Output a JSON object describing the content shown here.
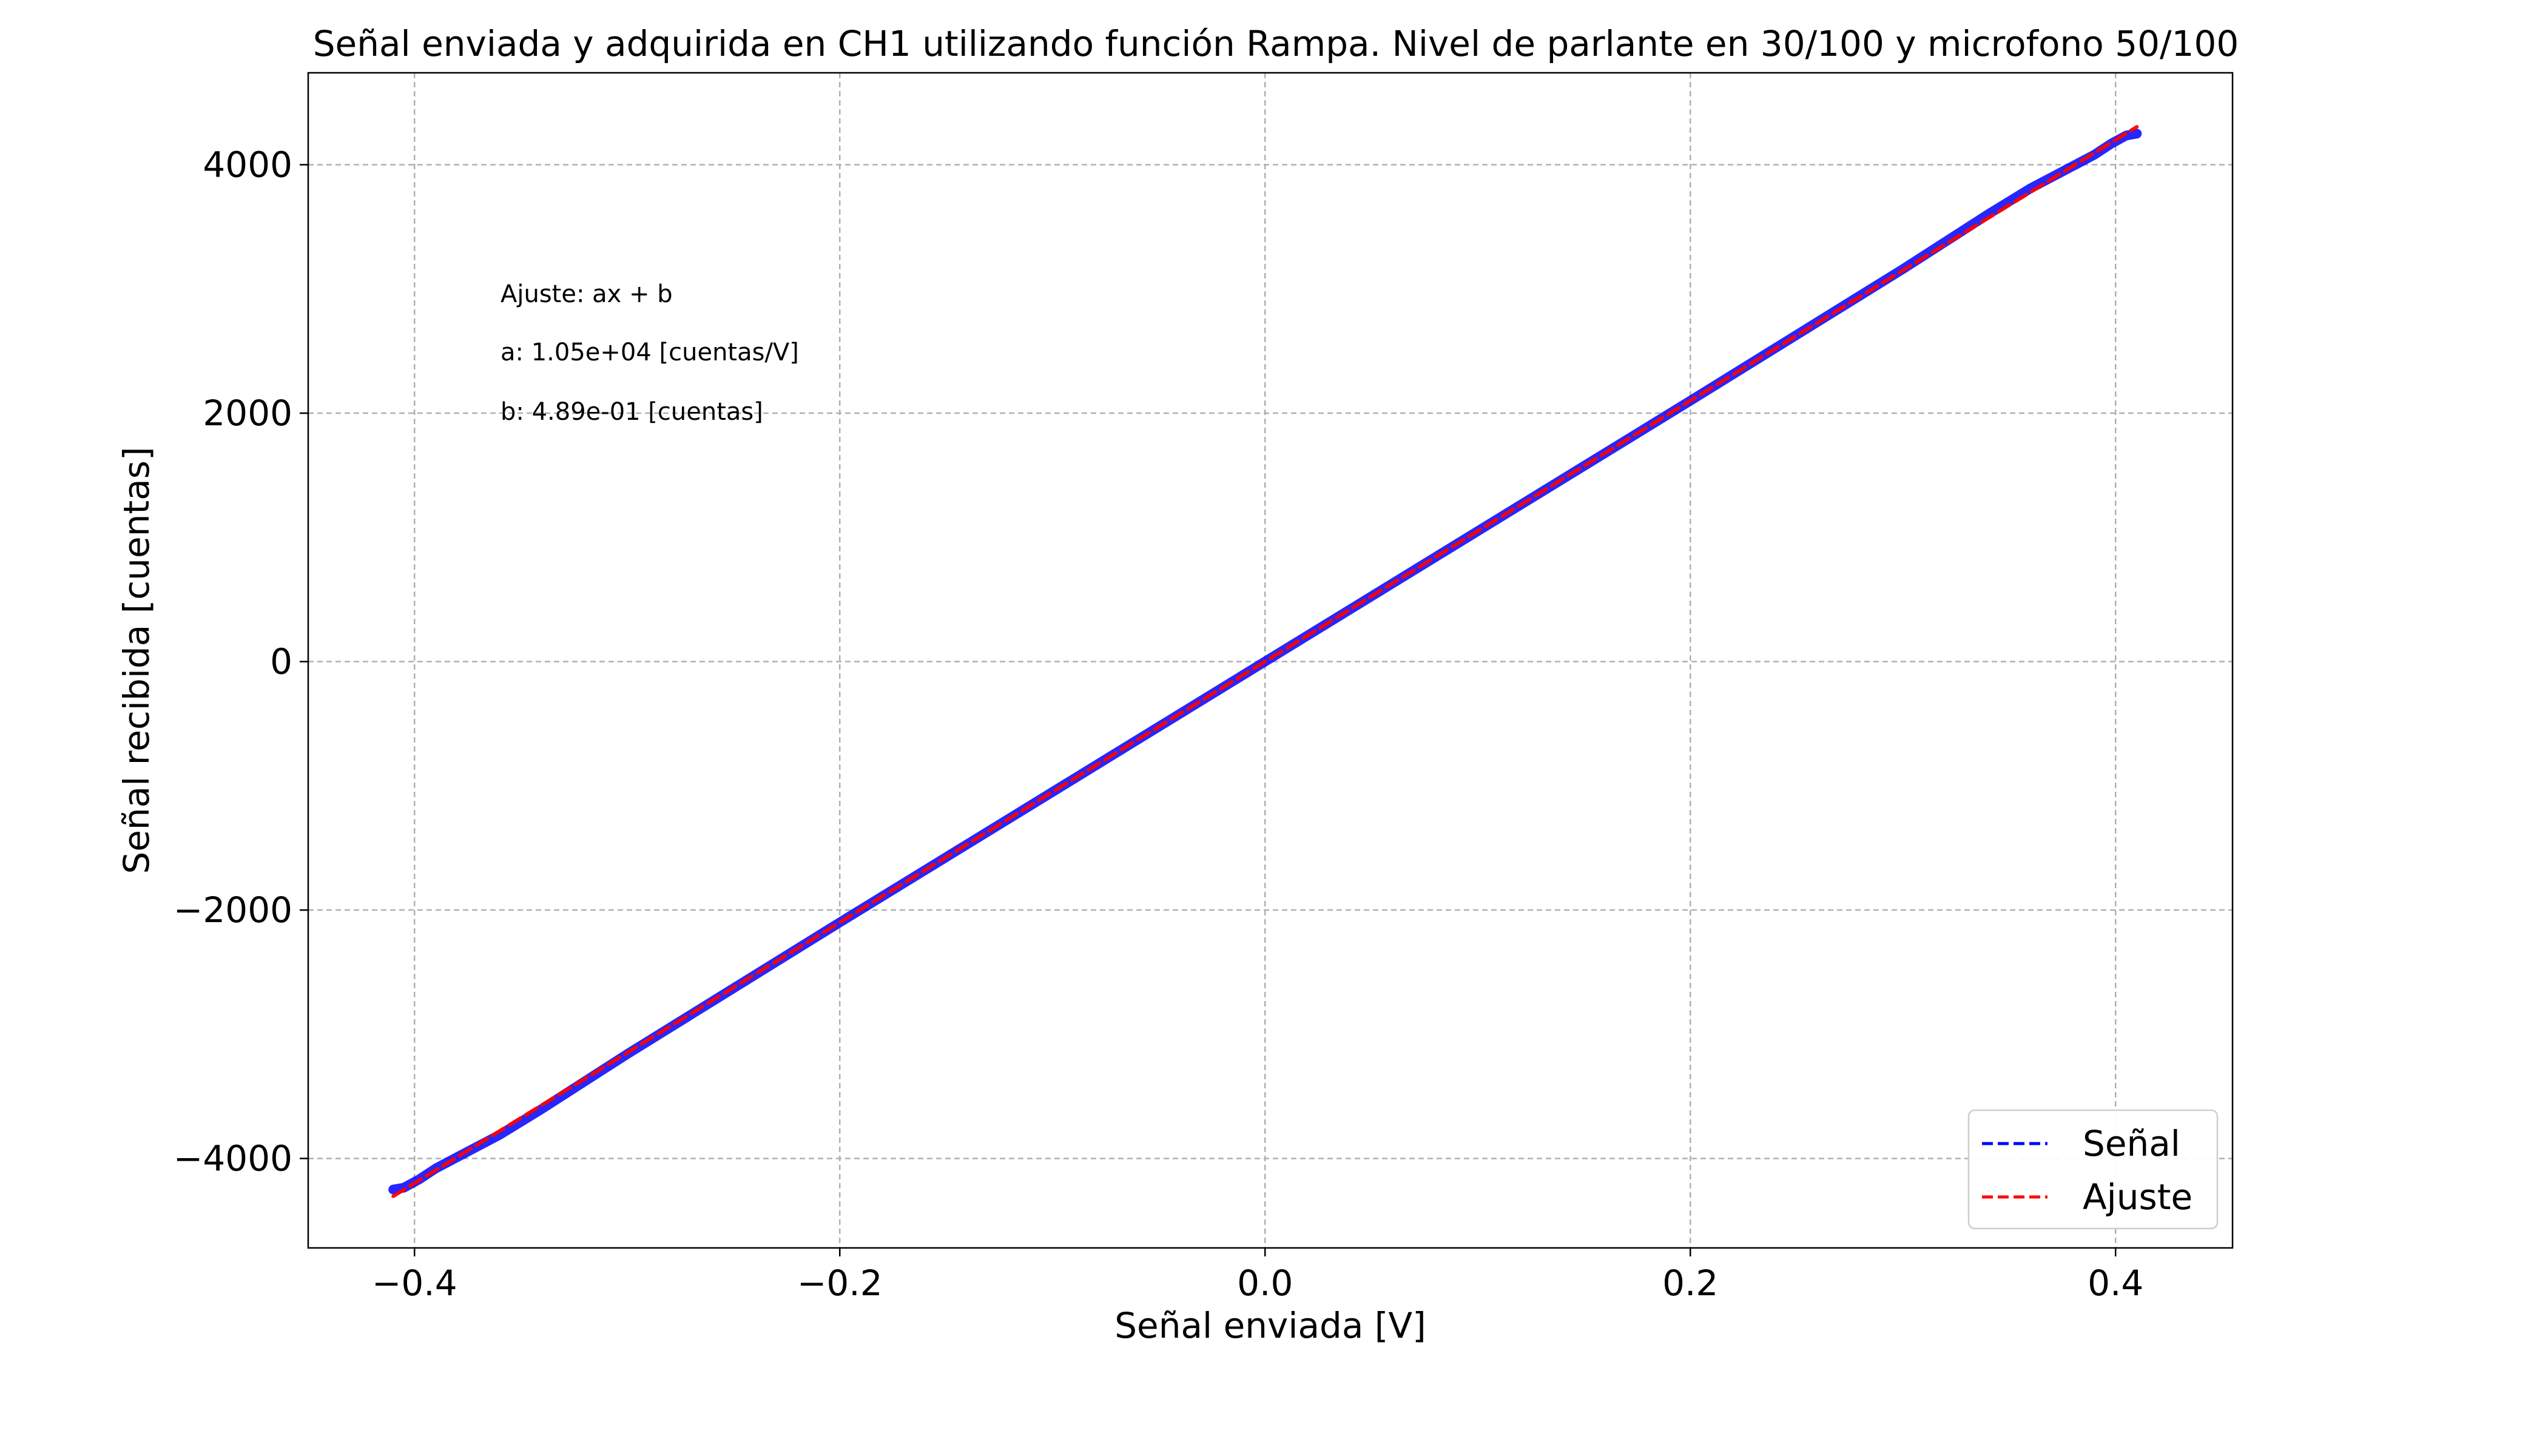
{
  "chart_data": {
    "type": "line",
    "title": "Señal enviada y adquirida en CH1 utilizando función Rampa. Nivel de parlante en 30/100 y microfono 50/100",
    "xlabel": "Señal enviada [V]",
    "ylabel": "Señal recibida [cuentas]",
    "xlim": [
      -0.45,
      0.455
    ],
    "ylim": [
      -4720,
      4740
    ],
    "xticks": [
      -0.4,
      -0.2,
      0.0,
      0.2,
      0.4
    ],
    "xtick_labels": [
      "−0.4",
      "−0.2",
      "0.0",
      "0.2",
      "0.4"
    ],
    "yticks": [
      -4000,
      -2000,
      0,
      2000,
      4000
    ],
    "ytick_labels": [
      "−4000",
      "−2000",
      "0",
      "2000",
      "4000"
    ],
    "grid": true,
    "legend_position": "bottom-right",
    "annotations": [
      "Ajuste: ax + b",
      "a: 1.05e+04 [cuentas/V]",
      "b: 4.89e-01 [cuentas]"
    ],
    "series": [
      {
        "name": "Señal",
        "color": "#0000ff",
        "style": "dashed",
        "x": [
          -0.41,
          -0.405,
          -0.398,
          -0.39,
          -0.38,
          -0.36,
          -0.34,
          -0.3,
          -0.2,
          -0.1,
          0.0,
          0.1,
          0.2,
          0.3,
          0.34,
          0.36,
          0.38,
          0.39,
          0.398,
          0.405,
          0.41
        ],
        "y": [
          -4250,
          -4235,
          -4170,
          -4080,
          -3990,
          -3810,
          -3600,
          -3160,
          -2100,
          -1050,
          0,
          1050,
          2100,
          3160,
          3600,
          3810,
          3990,
          4080,
          4170,
          4235,
          4250
        ]
      },
      {
        "name": "Ajuste",
        "color": "#ff0000",
        "style": "dashed",
        "x": [
          -0.41,
          0.41
        ],
        "y": [
          -4304,
          4305
        ]
      }
    ]
  }
}
